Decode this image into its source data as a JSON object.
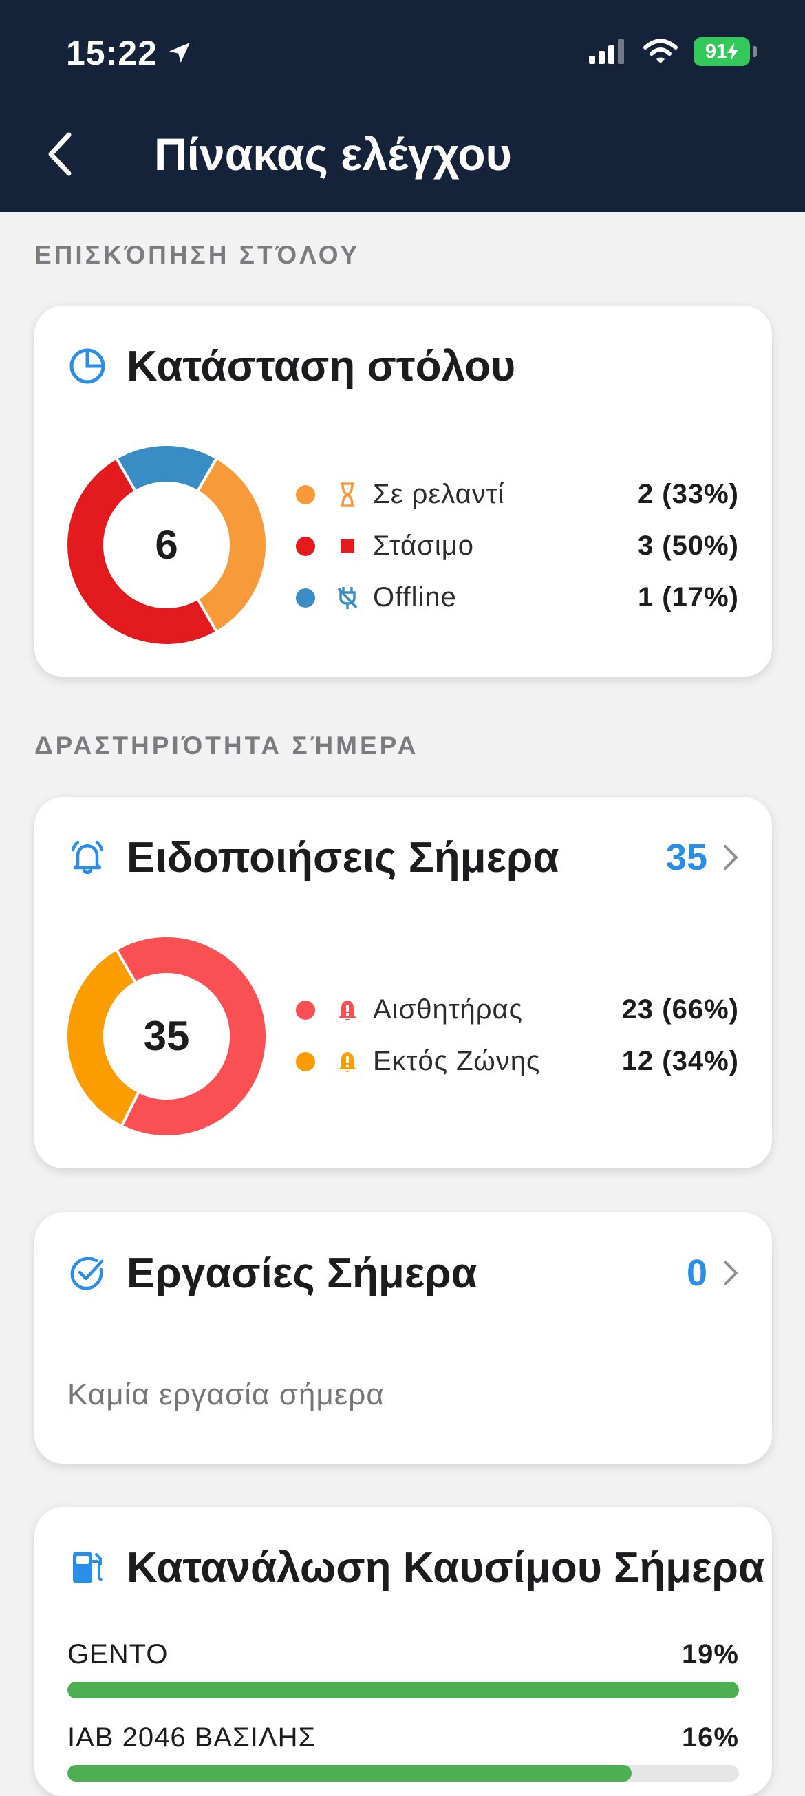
{
  "status_bar": {
    "time": "15:22",
    "battery": "91"
  },
  "nav": {
    "title": "Πίνακας ελέγχου"
  },
  "sections": {
    "fleet_overview": "ΕΠΙΣΚΌΠΗΣΗ ΣΤΌΛΟΥ",
    "activity_today": "ΔΡΑΣΤΗΡΙΌΤΗΤΑ ΣΉΜΕΡΑ"
  },
  "fleet_status": {
    "title": "Κατάσταση στόλου",
    "total": "6",
    "items": [
      {
        "label": "Σε ρελαντί",
        "value": "2 (33%)",
        "color": "#f99a3a",
        "icon": "hourglass-icon"
      },
      {
        "label": "Στάσιμο",
        "value": "3 (50%)",
        "color": "#e31b1f",
        "icon": "stop-square-icon"
      },
      {
        "label": "Offline",
        "value": "1 (17%)",
        "color": "#3a8dc4",
        "icon": "unplugged-icon"
      }
    ]
  },
  "alerts_today": {
    "title": "Ειδοποιήσεις Σήμερα",
    "count": "35",
    "total": "35",
    "items": [
      {
        "label": "Αισθητήρας",
        "value": "23 (66%)",
        "color": "#fb5053",
        "icon": "alert-bell-icon"
      },
      {
        "label": "Εκτός Ζώνης",
        "value": "12 (34%)",
        "color": "#fb9c00",
        "icon": "alert-bell-icon"
      }
    ]
  },
  "tasks_today": {
    "title": "Εργασίες Σήμερα",
    "count": "0",
    "empty": "Καμία εργασία σήμερα"
  },
  "fuel_today": {
    "title": "Κατανάλωση Καυσίμου Σήμερα",
    "rows": [
      {
        "name": "GENTO",
        "value": "19%",
        "fill": 1.0
      },
      {
        "name": "IAB 2046 ΒΑΣΙΛΗΣ",
        "value": "16%",
        "fill": 0.84
      }
    ]
  },
  "colors": {
    "header_bg": "#14223a",
    "accent": "#2a8ee6",
    "bar": "#4caf50"
  }
}
